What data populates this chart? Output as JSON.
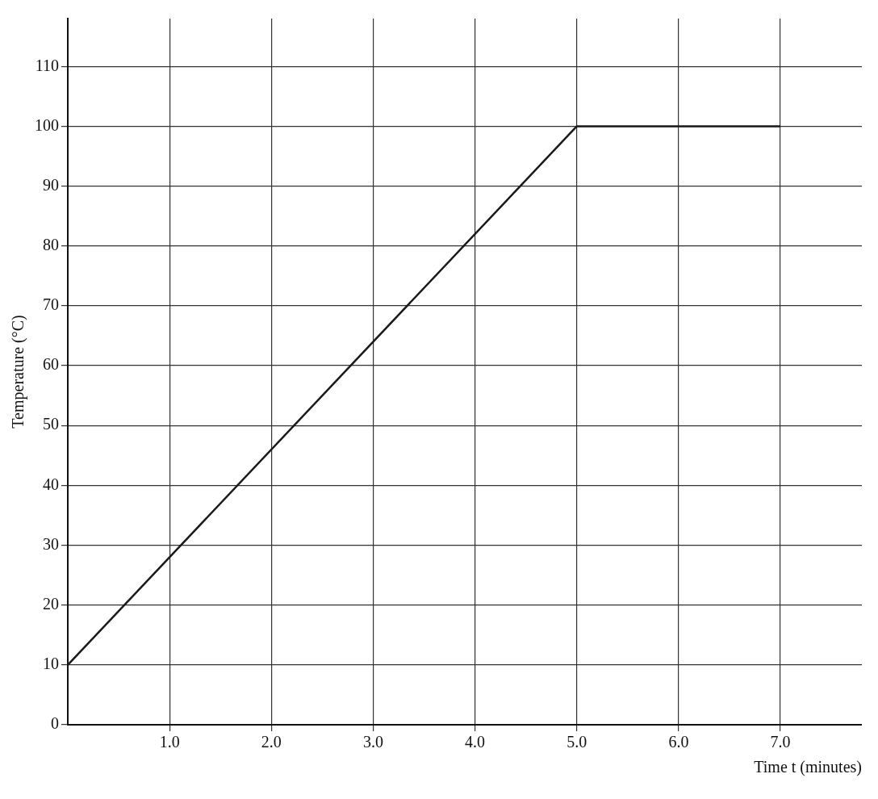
{
  "chart_data": {
    "type": "line",
    "xlabel": "Time t (minutes)",
    "ylabel": "Temperature (°C)",
    "series": [
      {
        "color": "#1a1a1a",
        "x": [
          0,
          5.0,
          7.0
        ],
        "values": [
          10,
          100,
          100
        ]
      }
    ],
    "xlim": [
      0,
      7.8
    ],
    "xticks": [
      {
        "value": 1,
        "label": "1.0"
      },
      {
        "value": 2,
        "label": "2.0"
      },
      {
        "value": 3,
        "label": "3.0"
      },
      {
        "value": 4,
        "label": "4.0"
      },
      {
        "value": 5,
        "label": "5.0"
      },
      {
        "value": 6,
        "label": "6.0"
      },
      {
        "value": 7,
        "label": "7.0"
      }
    ],
    "ylim": [
      0,
      118
    ],
    "yticks": [
      0,
      10,
      20,
      30,
      40,
      50,
      60,
      70,
      80,
      90,
      100,
      110
    ],
    "grid": true,
    "legend": false,
    "marker": "none",
    "line_style": "solid"
  }
}
